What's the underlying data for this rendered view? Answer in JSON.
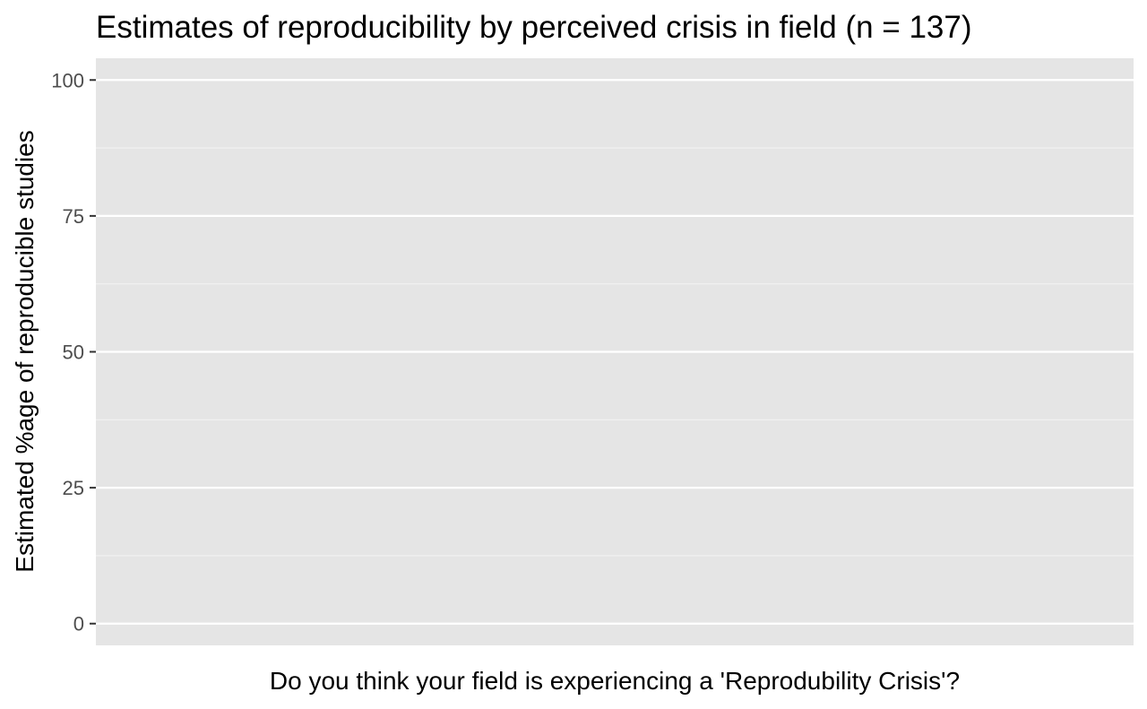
{
  "chart_data": {
    "type": "bar",
    "title": "Estimates of reproducibility by perceived crisis in field (n = 137)",
    "xlabel": "Do you think your field is experiencing a 'Reprodubility Crisis'?",
    "ylabel": "Estimated %age of reproducible studies",
    "categories": [],
    "values": [],
    "ylim": [
      -4,
      104
    ],
    "y_ticks": [
      0,
      25,
      50,
      75,
      100
    ],
    "y_tick_labels": [
      "0",
      "25",
      "50",
      "75",
      "100"
    ],
    "grid": true,
    "legend": "none",
    "colors": {
      "panel_background": "#e5e5e5",
      "grid_major": "#ffffff",
      "grid_minor": "#f2f2f2",
      "tick_mark": "#333333",
      "tick_text": "#4d4d4d",
      "text": "#000000"
    }
  }
}
